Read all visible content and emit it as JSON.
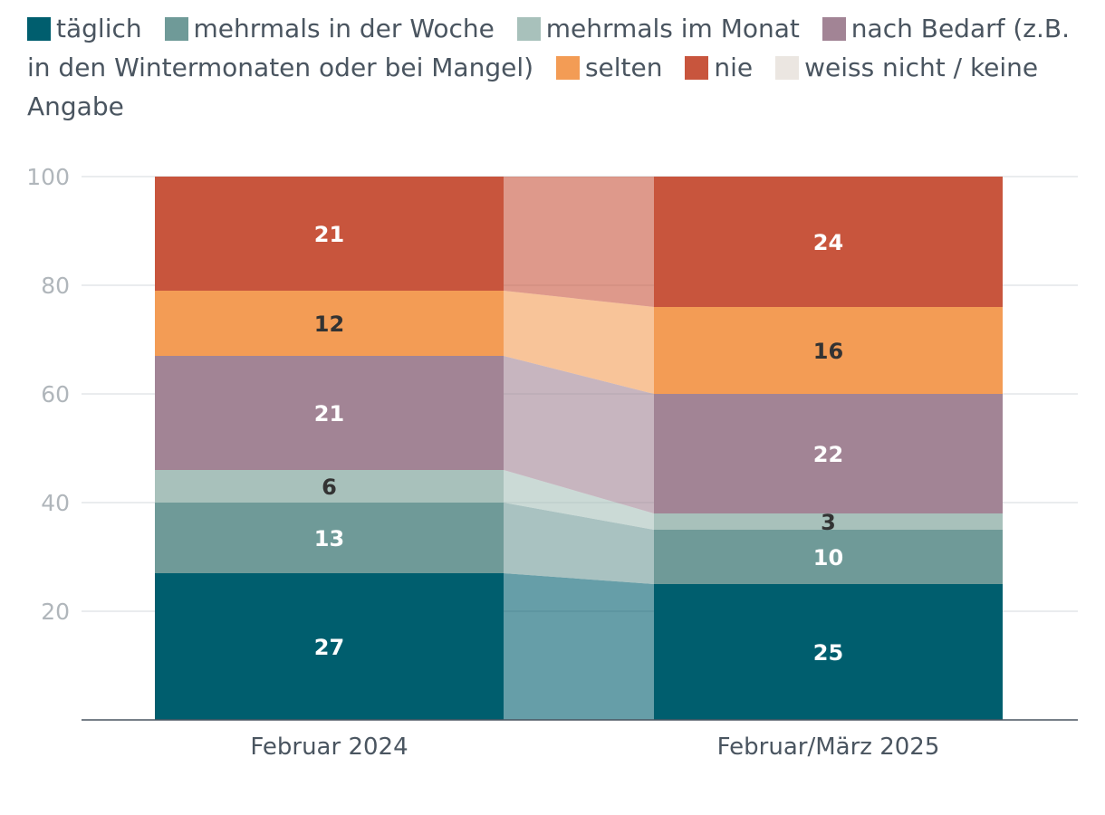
{
  "chart_data": {
    "type": "bar",
    "stacked": true,
    "categories": [
      "Februar 2024",
      "Februar/März 2025"
    ],
    "series": [
      {
        "name": "täglich",
        "color": "#005e6e",
        "label_color": "#ffffff",
        "values": [
          27,
          25
        ]
      },
      {
        "name": "mehrmals in der Woche",
        "color": "#6f9a98",
        "label_color": "#ffffff",
        "values": [
          13,
          10
        ]
      },
      {
        "name": "mehrmals im Monat",
        "color": "#a8c1bb",
        "label_color": "#333333",
        "values": [
          6,
          3
        ]
      },
      {
        "name": "nach Bedarf (z.B. in den Wintermonaten oder bei Mangel)",
        "color": "#a28495",
        "label_color": "#ffffff",
        "values": [
          21,
          22
        ]
      },
      {
        "name": "selten",
        "color": "#f39c55",
        "label_color": "#333333",
        "values": [
          12,
          16
        ]
      },
      {
        "name": "nie",
        "color": "#c8553d",
        "label_color": "#ffffff",
        "values": [
          21,
          24
        ]
      },
      {
        "name": "weiss nicht / keine Angabe",
        "color": "#ebe6e1",
        "label_color": "#333333",
        "values": [
          0,
          0
        ]
      }
    ],
    "ylim": [
      0,
      100
    ],
    "yticks": [
      "20",
      "40",
      "60",
      "80",
      "100"
    ],
    "grid": true,
    "legend": "top"
  }
}
